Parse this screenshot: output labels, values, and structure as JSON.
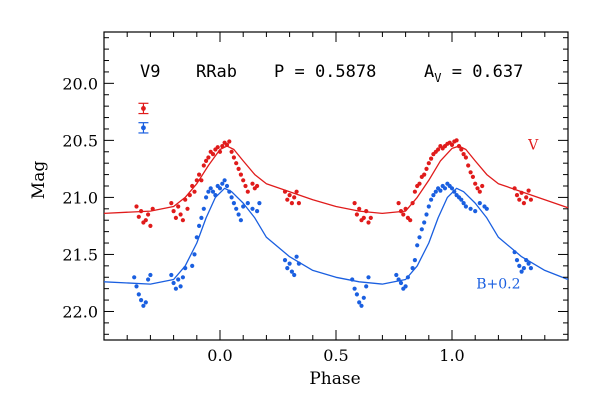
{
  "chart_data": {
    "type": "scatter",
    "header": {
      "star": "V9",
      "class": "RRab",
      "period": "P = 0.5878",
      "amp_prefix": "A",
      "amp_sub": "V",
      "amp_suffix": " = 0.637"
    },
    "xlabel": "Phase",
    "ylabel": "Mag",
    "xlim": [
      -0.5,
      1.5
    ],
    "ylim": [
      22.25,
      19.55
    ],
    "y_inverted": true,
    "x_ticks": [
      0.0,
      0.5,
      1.0
    ],
    "x_tick_labels": [
      "0.0",
      "0.5",
      "1.0"
    ],
    "y_ticks": [
      20.0,
      20.5,
      21.0,
      21.5,
      22.0
    ],
    "y_tick_labels": [
      "20.0",
      "20.5",
      "21.0",
      "21.5",
      "22.0"
    ],
    "grid": false,
    "error_bars": [
      {
        "series": "V",
        "x": -0.33,
        "y": 20.22,
        "err": 0.045,
        "color": "#e01b1b"
      },
      {
        "series": "B",
        "x": -0.33,
        "y": 20.39,
        "err": 0.045,
        "color": "#1a5fe0"
      }
    ],
    "series": [
      {
        "key": "V",
        "name": "V",
        "color": "#e01b1b",
        "points": [
          [
            -0.36,
            21.08
          ],
          [
            -0.35,
            21.17
          ],
          [
            -0.34,
            21.12
          ],
          [
            -0.33,
            21.22
          ],
          [
            -0.32,
            21.2
          ],
          [
            -0.31,
            21.15
          ],
          [
            -0.3,
            21.25
          ],
          [
            -0.29,
            21.1
          ],
          [
            -0.21,
            21.05
          ],
          [
            -0.2,
            21.12
          ],
          [
            -0.19,
            21.18
          ],
          [
            -0.18,
            21.08
          ],
          [
            -0.17,
            21.15
          ],
          [
            -0.16,
            21.2
          ],
          [
            -0.15,
            21.02
          ],
          [
            -0.14,
            21.1
          ],
          [
            -0.13,
            20.98
          ],
          [
            -0.12,
            20.9
          ],
          [
            -0.11,
            20.95
          ],
          [
            -0.1,
            20.85
          ],
          [
            -0.09,
            20.8
          ],
          [
            -0.08,
            20.85
          ],
          [
            -0.07,
            20.72
          ],
          [
            -0.06,
            20.68
          ],
          [
            -0.05,
            20.65
          ],
          [
            -0.04,
            20.6
          ],
          [
            -0.03,
            20.62
          ],
          [
            -0.02,
            20.58
          ],
          [
            -0.01,
            20.56
          ],
          [
            0.0,
            20.6
          ],
          [
            0.01,
            20.55
          ],
          [
            0.02,
            20.52
          ],
          [
            0.03,
            20.54
          ],
          [
            0.04,
            20.51
          ],
          [
            0.05,
            20.6
          ],
          [
            0.06,
            20.65
          ],
          [
            0.07,
            20.7
          ],
          [
            0.08,
            20.75
          ],
          [
            0.09,
            20.8
          ],
          [
            0.1,
            20.85
          ],
          [
            0.11,
            20.9
          ],
          [
            0.12,
            20.95
          ],
          [
            0.14,
            20.88
          ],
          [
            0.15,
            20.92
          ],
          [
            0.16,
            20.9
          ],
          [
            0.28,
            20.95
          ],
          [
            0.29,
            21.02
          ],
          [
            0.3,
            20.98
          ],
          [
            0.31,
            21.05
          ],
          [
            0.32,
            21.0
          ],
          [
            0.33,
            20.95
          ],
          [
            0.34,
            21.05
          ],
          [
            0.58,
            21.05
          ],
          [
            0.59,
            21.15
          ],
          [
            0.6,
            21.1
          ],
          [
            0.61,
            21.2
          ],
          [
            0.62,
            21.18
          ],
          [
            0.63,
            21.12
          ],
          [
            0.64,
            21.22
          ],
          [
            0.65,
            21.18
          ],
          [
            0.77,
            21.05
          ],
          [
            0.78,
            21.12
          ],
          [
            0.79,
            21.15
          ],
          [
            0.8,
            21.1
          ],
          [
            0.81,
            21.18
          ],
          [
            0.82,
            21.2
          ],
          [
            0.83,
            21.05
          ],
          [
            0.84,
            20.95
          ],
          [
            0.85,
            20.9
          ],
          [
            0.86,
            20.88
          ],
          [
            0.87,
            20.82
          ],
          [
            0.88,
            20.8
          ],
          [
            0.89,
            20.75
          ],
          [
            0.9,
            20.7
          ],
          [
            0.91,
            20.66
          ],
          [
            0.92,
            20.62
          ],
          [
            0.93,
            20.6
          ],
          [
            0.94,
            20.58
          ],
          [
            0.95,
            20.55
          ],
          [
            0.96,
            20.57
          ],
          [
            0.97,
            20.55
          ],
          [
            0.98,
            20.53
          ],
          [
            0.99,
            20.52
          ],
          [
            1.0,
            20.54
          ],
          [
            1.01,
            20.51
          ],
          [
            1.02,
            20.5
          ],
          [
            1.03,
            20.55
          ],
          [
            1.04,
            20.58
          ],
          [
            1.05,
            20.62
          ],
          [
            1.06,
            20.65
          ],
          [
            1.07,
            20.72
          ],
          [
            1.08,
            20.78
          ],
          [
            1.09,
            20.82
          ],
          [
            1.1,
            20.88
          ],
          [
            1.11,
            20.92
          ],
          [
            1.12,
            20.95
          ],
          [
            1.13,
            20.9
          ],
          [
            1.27,
            20.92
          ],
          [
            1.28,
            20.98
          ],
          [
            1.29,
            21.02
          ],
          [
            1.3,
            20.96
          ],
          [
            1.31,
            21.05
          ],
          [
            1.32,
            21.0
          ],
          [
            1.33,
            20.94
          ],
          [
            1.34,
            21.02
          ]
        ],
        "curve": [
          [
            -0.5,
            21.14
          ],
          [
            -0.3,
            21.12
          ],
          [
            -0.2,
            21.08
          ],
          [
            -0.15,
            21.0
          ],
          [
            -0.1,
            20.88
          ],
          [
            -0.05,
            20.72
          ],
          [
            0.0,
            20.58
          ],
          [
            0.03,
            20.55
          ],
          [
            0.06,
            20.58
          ],
          [
            0.1,
            20.68
          ],
          [
            0.15,
            20.8
          ],
          [
            0.2,
            20.88
          ],
          [
            0.3,
            20.95
          ],
          [
            0.4,
            21.02
          ],
          [
            0.5,
            21.08
          ],
          [
            0.6,
            21.12
          ],
          [
            0.7,
            21.14
          ],
          [
            0.8,
            21.12
          ],
          [
            0.85,
            21.0
          ],
          [
            0.9,
            20.85
          ],
          [
            0.95,
            20.68
          ],
          [
            1.0,
            20.57
          ],
          [
            1.03,
            20.55
          ],
          [
            1.06,
            20.58
          ],
          [
            1.1,
            20.68
          ],
          [
            1.15,
            20.8
          ],
          [
            1.2,
            20.88
          ],
          [
            1.3,
            20.95
          ],
          [
            1.4,
            21.02
          ],
          [
            1.5,
            21.09
          ]
        ]
      },
      {
        "key": "B",
        "name": "B+0.2",
        "color": "#1a5fe0",
        "points": [
          [
            -0.37,
            21.7
          ],
          [
            -0.36,
            21.78
          ],
          [
            -0.35,
            21.85
          ],
          [
            -0.34,
            21.9
          ],
          [
            -0.33,
            21.95
          ],
          [
            -0.32,
            21.92
          ],
          [
            -0.31,
            21.72
          ],
          [
            -0.3,
            21.68
          ],
          [
            -0.21,
            21.68
          ],
          [
            -0.2,
            21.75
          ],
          [
            -0.19,
            21.8
          ],
          [
            -0.18,
            21.72
          ],
          [
            -0.17,
            21.78
          ],
          [
            -0.16,
            21.7
          ],
          [
            -0.15,
            21.62
          ],
          [
            -0.12,
            21.6
          ],
          [
            -0.11,
            21.5
          ],
          [
            -0.1,
            21.35
          ],
          [
            -0.09,
            21.25
          ],
          [
            -0.08,
            21.18
          ],
          [
            -0.07,
            21.1
          ],
          [
            -0.06,
            21.0
          ],
          [
            -0.05,
            20.95
          ],
          [
            -0.04,
            20.92
          ],
          [
            -0.03,
            20.95
          ],
          [
            -0.02,
            20.98
          ],
          [
            -0.01,
            20.9
          ],
          [
            0.0,
            20.92
          ],
          [
            0.01,
            20.88
          ],
          [
            0.02,
            20.85
          ],
          [
            0.03,
            20.9
          ],
          [
            0.04,
            20.95
          ],
          [
            0.05,
            21.0
          ],
          [
            0.06,
            21.05
          ],
          [
            0.07,
            21.1
          ],
          [
            0.08,
            21.15
          ],
          [
            0.09,
            21.2
          ],
          [
            0.1,
            21.08
          ],
          [
            0.12,
            21.05
          ],
          [
            0.14,
            21.1
          ],
          [
            0.16,
            21.12
          ],
          [
            0.17,
            21.05
          ],
          [
            0.28,
            21.55
          ],
          [
            0.29,
            21.62
          ],
          [
            0.3,
            21.58
          ],
          [
            0.31,
            21.65
          ],
          [
            0.32,
            21.68
          ],
          [
            0.33,
            21.52
          ],
          [
            0.34,
            21.58
          ],
          [
            0.57,
            21.72
          ],
          [
            0.58,
            21.8
          ],
          [
            0.59,
            21.85
          ],
          [
            0.6,
            21.92
          ],
          [
            0.61,
            21.95
          ],
          [
            0.62,
            21.88
          ],
          [
            0.63,
            21.78
          ],
          [
            0.64,
            21.7
          ],
          [
            0.76,
            21.68
          ],
          [
            0.77,
            21.72
          ],
          [
            0.78,
            21.75
          ],
          [
            0.79,
            21.8
          ],
          [
            0.8,
            21.78
          ],
          [
            0.81,
            21.7
          ],
          [
            0.83,
            21.62
          ],
          [
            0.84,
            21.55
          ],
          [
            0.85,
            21.42
          ],
          [
            0.86,
            21.35
          ],
          [
            0.87,
            21.28
          ],
          [
            0.88,
            21.22
          ],
          [
            0.89,
            21.15
          ],
          [
            0.9,
            21.08
          ],
          [
            0.91,
            21.02
          ],
          [
            0.92,
            20.98
          ],
          [
            0.93,
            20.95
          ],
          [
            0.94,
            20.92
          ],
          [
            0.95,
            20.94
          ],
          [
            0.96,
            20.9
          ],
          [
            0.97,
            20.92
          ],
          [
            0.98,
            20.88
          ],
          [
            0.99,
            20.9
          ],
          [
            1.0,
            20.92
          ],
          [
            1.01,
            20.95
          ],
          [
            1.02,
            20.98
          ],
          [
            1.03,
            21.0
          ],
          [
            1.04,
            21.02
          ],
          [
            1.05,
            21.05
          ],
          [
            1.06,
            21.08
          ],
          [
            1.08,
            21.1
          ],
          [
            1.1,
            21.12
          ],
          [
            1.12,
            21.05
          ],
          [
            1.14,
            21.08
          ],
          [
            1.15,
            21.1
          ],
          [
            1.27,
            21.48
          ],
          [
            1.28,
            21.55
          ],
          [
            1.29,
            21.6
          ],
          [
            1.3,
            21.65
          ],
          [
            1.31,
            21.62
          ],
          [
            1.32,
            21.55
          ],
          [
            1.33,
            21.58
          ],
          [
            1.34,
            21.62
          ]
        ],
        "curve": [
          [
            -0.5,
            21.74
          ],
          [
            -0.3,
            21.76
          ],
          [
            -0.2,
            21.72
          ],
          [
            -0.15,
            21.6
          ],
          [
            -0.1,
            21.4
          ],
          [
            -0.06,
            21.18
          ],
          [
            -0.02,
            21.0
          ],
          [
            0.02,
            20.92
          ],
          [
            0.05,
            20.95
          ],
          [
            0.1,
            21.05
          ],
          [
            0.15,
            21.18
          ],
          [
            0.2,
            21.35
          ],
          [
            0.3,
            21.52
          ],
          [
            0.4,
            21.64
          ],
          [
            0.5,
            21.7
          ],
          [
            0.6,
            21.74
          ],
          [
            0.7,
            21.76
          ],
          [
            0.8,
            21.72
          ],
          [
            0.85,
            21.6
          ],
          [
            0.9,
            21.4
          ],
          [
            0.94,
            21.18
          ],
          [
            0.98,
            21.0
          ],
          [
            1.02,
            20.92
          ],
          [
            1.05,
            20.95
          ],
          [
            1.1,
            21.05
          ],
          [
            1.15,
            21.18
          ],
          [
            1.2,
            21.35
          ],
          [
            1.3,
            21.52
          ],
          [
            1.4,
            21.64
          ],
          [
            1.5,
            21.72
          ]
        ]
      }
    ],
    "series_labels": [
      {
        "series": "V",
        "text": "V",
        "x": 1.35,
        "y": 20.58,
        "color": "#e01b1b"
      },
      {
        "series": "B",
        "text": "B+0.2",
        "x": 1.2,
        "y": 21.8,
        "color": "#1a5fe0"
      }
    ]
  }
}
